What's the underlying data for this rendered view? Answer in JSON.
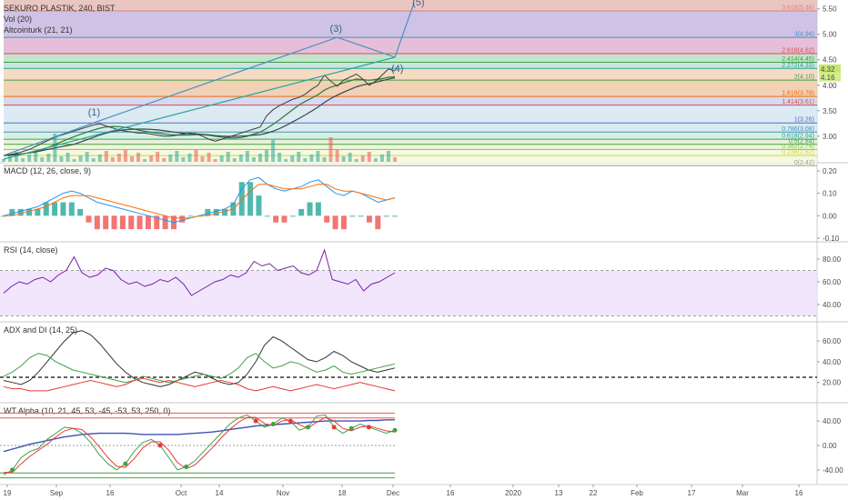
{
  "header": {
    "title": "SEKURO PLASTIK, 240, BIST",
    "indicators": [
      "Vol (20)",
      "Altcointurk (21, 21)"
    ]
  },
  "colors": {
    "up": "#26a69a",
    "down": "#ef5350",
    "price": "#3c3c3c",
    "macd": "#2196f3",
    "signal": "#ff6d00",
    "rsi": "#7b1fa2",
    "adx": "#333333",
    "diplus": "#43a047",
    "diminus": "#e53935",
    "wt1": "#43a047",
    "wt2": "#e53935",
    "wtlong": "#3f51b5",
    "wave": "#4a90c2"
  },
  "fib_levels": [
    {
      "label": "3.618(5.46)",
      "value": 5.46,
      "color": "#d9827f",
      "fill": "#e6bcb9"
    },
    {
      "label": "3(4.94)",
      "value": 4.94,
      "color": "#4a90c2",
      "fill": "#c7b8e0"
    },
    {
      "label": "2.618(4.62)",
      "value": 4.62,
      "color": "#d94c4c",
      "fill": "#e0b4d2"
    },
    {
      "label": "2.414(4.45)",
      "value": 4.45,
      "color": "#43a047",
      "fill": "#b7dfc4"
    },
    {
      "label": "2.272(4.33)",
      "value": 4.33,
      "color": "#26a69a",
      "fill": "#bfe0d9"
    },
    {
      "label": "2(4.10)",
      "value": 4.1,
      "color": "#43a047",
      "fill": "#f5d5b8"
    },
    {
      "label": "1.618(3.78)",
      "value": 3.78,
      "color": "#ef6c00",
      "fill": "#f0c9a8"
    },
    {
      "label": "1.414(3.61)",
      "value": 3.61,
      "color": "#d94c4c",
      "fill": "#cfd2ec"
    },
    {
      "label": "1(3.26)",
      "value": 3.26,
      "color": "#5c6bc0",
      "fill": "#d6e6f2"
    },
    {
      "label": "0.786(3.08)",
      "value": 3.08,
      "color": "#4a90c2",
      "fill": "#cfe9ee"
    },
    {
      "label": "0.618(2.94)",
      "value": 2.94,
      "color": "#26a69a",
      "fill": "#d5ecd7"
    },
    {
      "label": "0.5(2.84)",
      "value": 2.84,
      "color": "#43a047",
      "fill": "#e2f0cf"
    },
    {
      "label": "0.382(2.74)",
      "value": 2.74,
      "color": "#8bc34a",
      "fill": "#eef5d6"
    },
    {
      "label": "0.236(2.62)",
      "value": 2.62,
      "color": "#cddc39",
      "fill": "#f3f7df"
    },
    {
      "label": "0(2.42)",
      "value": 2.42,
      "color": "#9e9e9e",
      "fill": "#f3f7df"
    }
  ],
  "price_badges": [
    "4.32",
    "4.16"
  ],
  "wave_labels": [
    "(1)",
    "(3)",
    "(4)",
    "(5)"
  ],
  "x_axis": {
    "ticks": [
      "19",
      "Sep",
      "16",
      "Oct",
      "14",
      "Nov",
      "18",
      "Dec",
      "16",
      "2020",
      "13",
      "22",
      "Feb",
      "17",
      "Mar",
      "16"
    ]
  },
  "chart_data": [
    {
      "type": "line",
      "title": "SEKURO PLASTIK, 240, BIST",
      "y_ticks": [
        3.0,
        3.5,
        4.0,
        4.5,
        5.0,
        5.5
      ],
      "ylim": [
        2.55,
        5.62
      ],
      "price_series": [
        2.62,
        2.64,
        2.66,
        2.7,
        2.74,
        2.8,
        2.86,
        2.92,
        2.98,
        3.02,
        3.06,
        3.1,
        3.14,
        3.18,
        3.22,
        3.24,
        3.2,
        3.16,
        3.12,
        3.1,
        3.08,
        3.06,
        3.06,
        3.04,
        3.02,
        3.0,
        3.0,
        3.02,
        3.04,
        3.06,
        3.05,
        3.0,
        2.94,
        2.9,
        2.94,
        2.98,
        3.02,
        3.06,
        3.1,
        3.14,
        3.18,
        3.4,
        3.52,
        3.6,
        3.66,
        3.72,
        3.76,
        3.82,
        3.92,
        4.0,
        4.2,
        4.08,
        3.98,
        4.1,
        4.16,
        4.22,
        4.12,
        4.0,
        4.08,
        4.2,
        4.32,
        4.28
      ]
    },
    {
      "type": "line",
      "title": "MACD (12, 26, close, 9)",
      "y_ticks": [
        -0.1,
        0.0,
        0.1,
        0.2
      ],
      "ylim": [
        -0.1,
        0.22
      ],
      "series": [
        {
          "values": [
            0.0,
            0.01,
            0.02,
            0.03,
            0.04,
            0.06,
            0.08,
            0.1,
            0.11,
            0.1,
            0.08,
            0.06,
            0.05,
            0.04,
            0.03,
            0.02,
            0.01,
            0.0,
            -0.01,
            -0.02,
            -0.03,
            -0.02,
            -0.01,
            0.0,
            0.01,
            0.02,
            0.03,
            0.05,
            0.12,
            0.16,
            0.17,
            0.14,
            0.12,
            0.11,
            0.12,
            0.13,
            0.15,
            0.16,
            0.13,
            0.1,
            0.09,
            0.11,
            0.1,
            0.08,
            0.06,
            0.07,
            0.08
          ]
        },
        {
          "values": [
            0.0,
            0.0,
            0.01,
            0.02,
            0.03,
            0.04,
            0.06,
            0.08,
            0.09,
            0.09,
            0.09,
            0.08,
            0.07,
            0.06,
            0.05,
            0.04,
            0.03,
            0.02,
            0.01,
            0.0,
            -0.01,
            -0.01,
            -0.01,
            0.0,
            0.0,
            0.01,
            0.02,
            0.03,
            0.07,
            0.11,
            0.14,
            0.14,
            0.13,
            0.12,
            0.12,
            0.12,
            0.13,
            0.14,
            0.14,
            0.12,
            0.11,
            0.11,
            0.1,
            0.09,
            0.08,
            0.07,
            0.08
          ]
        }
      ]
    },
    {
      "type": "line",
      "title": "RSI (14, close)",
      "y_ticks": [
        40.0,
        60.0,
        80.0
      ],
      "ylim": [
        28,
        92
      ],
      "bands": [
        70,
        30
      ],
      "series": [
        {
          "values": [
            50,
            56,
            60,
            58,
            62,
            64,
            60,
            66,
            70,
            82,
            68,
            64,
            66,
            72,
            70,
            62,
            58,
            60,
            56,
            58,
            62,
            60,
            64,
            58,
            48,
            52,
            56,
            60,
            62,
            66,
            64,
            68,
            78,
            74,
            76,
            70,
            72,
            74,
            68,
            66,
            70,
            88,
            62,
            60,
            58,
            62,
            52,
            58,
            60,
            64,
            68
          ]
        }
      ]
    },
    {
      "type": "line",
      "title": "ADX and DI (14, 25)",
      "y_ticks": [
        20.0,
        40.0,
        60.0
      ],
      "ylim": [
        4,
        75
      ],
      "reference": 25,
      "series": [
        {
          "values": [
            22,
            20,
            18,
            22,
            30,
            40,
            50,
            60,
            68,
            70,
            66,
            58,
            48,
            38,
            30,
            24,
            20,
            18,
            16,
            18,
            22,
            26,
            30,
            28,
            24,
            20,
            18,
            20,
            28,
            40,
            56,
            64,
            60,
            54,
            48,
            42,
            40,
            44,
            50,
            46,
            40,
            36,
            32,
            30,
            32,
            34
          ]
        },
        {
          "values": [
            26,
            30,
            36,
            44,
            48,
            46,
            40,
            36,
            32,
            30,
            28,
            26,
            24,
            22,
            20,
            22,
            26,
            24,
            22,
            20,
            22,
            24,
            26,
            28,
            26,
            24,
            28,
            34,
            44,
            48,
            40,
            34,
            36,
            40,
            38,
            34,
            30,
            32,
            36,
            30,
            28,
            30,
            32,
            34,
            36,
            38
          ]
        },
        {
          "values": [
            16,
            14,
            14,
            12,
            12,
            12,
            14,
            16,
            18,
            20,
            22,
            20,
            18,
            16,
            18,
            22,
            24,
            22,
            20,
            22,
            20,
            18,
            16,
            18,
            20,
            22,
            20,
            18,
            14,
            12,
            14,
            16,
            14,
            12,
            14,
            16,
            18,
            16,
            14,
            16,
            18,
            20,
            18,
            16,
            14,
            12
          ]
        }
      ]
    },
    {
      "type": "line",
      "title": "WT Alpha (10, 21, 45, 53, -45, -53, 53, 250, 0)",
      "y_ticks": [
        -40.0,
        0.0,
        40.0
      ],
      "ylim": [
        -58,
        64
      ],
      "bands": [
        53,
        45,
        -45,
        -53
      ],
      "series": [
        {
          "values": [
            -48,
            -40,
            -20,
            -10,
            -5,
            10,
            20,
            30,
            28,
            20,
            5,
            -15,
            -30,
            -40,
            -30,
            -10,
            5,
            10,
            0,
            -20,
            -40,
            -35,
            -25,
            -10,
            5,
            20,
            35,
            45,
            50,
            40,
            30,
            35,
            45,
            40,
            25,
            30,
            48,
            50,
            30,
            20,
            28,
            35,
            30,
            25,
            20,
            25
          ]
        },
        {
          "values": [
            -44,
            -44,
            -30,
            -18,
            -8,
            2,
            14,
            24,
            28,
            26,
            14,
            -2,
            -20,
            -34,
            -36,
            -22,
            -4,
            6,
            6,
            -8,
            -28,
            -38,
            -32,
            -18,
            -4,
            12,
            26,
            38,
            46,
            46,
            36,
            32,
            40,
            42,
            34,
            28,
            38,
            46,
            40,
            28,
            24,
            30,
            32,
            28,
            24,
            22
          ]
        },
        {
          "values": [
            -10,
            -6,
            -2,
            2,
            5,
            8,
            11,
            14,
            16,
            18,
            19,
            20,
            20,
            20,
            20,
            19,
            18,
            18,
            18,
            18,
            18,
            19,
            20,
            21,
            22,
            24,
            26,
            28,
            30,
            32,
            33,
            34,
            35,
            36,
            37,
            38,
            39,
            40,
            40,
            40,
            40,
            40,
            41,
            41,
            42,
            42
          ]
        }
      ]
    }
  ]
}
